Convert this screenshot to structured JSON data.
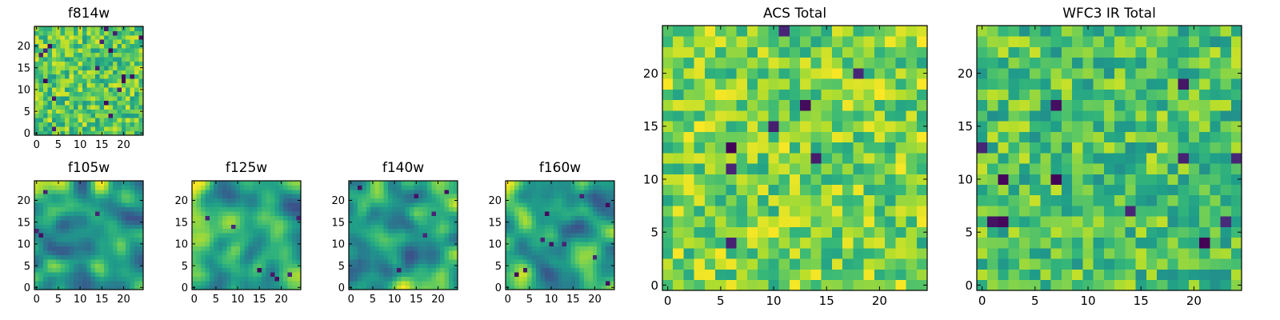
{
  "chart_data": [
    {
      "type": "heatmap",
      "title": "f814w",
      "grid": "25x25",
      "colormap": "viridis",
      "xlim": [
        -0.5,
        24.5
      ],
      "ylim": [
        -0.5,
        24.5
      ],
      "xticks": [
        0,
        5,
        10,
        15,
        20
      ],
      "yticks": [
        0,
        5,
        10,
        15,
        20
      ],
      "texture": "pixel noise",
      "seed": 11,
      "bias": 0.65,
      "dark_spots": 18
    },
    {
      "type": "heatmap",
      "title": "f105w",
      "grid": "25x25",
      "colormap": "viridis",
      "xlim": [
        -0.5,
        24.5
      ],
      "ylim": [
        -0.5,
        24.5
      ],
      "xticks": [
        0,
        5,
        10,
        15,
        20
      ],
      "yticks": [
        0,
        5,
        10,
        15,
        20
      ],
      "texture": "smooth",
      "seed": 23,
      "bias": 0.7,
      "dark_spots": 4
    },
    {
      "type": "heatmap",
      "title": "f125w",
      "grid": "25x25",
      "colormap": "viridis",
      "xlim": [
        -0.5,
        24.5
      ],
      "ylim": [
        -0.5,
        24.5
      ],
      "xticks": [
        0,
        5,
        10,
        15,
        20
      ],
      "yticks": [
        0,
        5,
        10,
        15,
        20
      ],
      "texture": "smooth",
      "seed": 37,
      "bias": 0.68,
      "dark_spots": 7
    },
    {
      "type": "heatmap",
      "title": "f140w",
      "grid": "25x25",
      "colormap": "viridis",
      "xlim": [
        -0.5,
        24.5
      ],
      "ylim": [
        -0.5,
        24.5
      ],
      "xticks": [
        0,
        5,
        10,
        15,
        20
      ],
      "yticks": [
        0,
        5,
        10,
        15,
        20
      ],
      "texture": "smooth",
      "seed": 41,
      "bias": 0.6,
      "dark_spots": 6
    },
    {
      "type": "heatmap",
      "title": "f160w",
      "grid": "25x25",
      "colormap": "viridis",
      "xlim": [
        -0.5,
        24.5
      ],
      "ylim": [
        -0.5,
        24.5
      ],
      "xticks": [
        0,
        5,
        10,
        15,
        20
      ],
      "yticks": [
        0,
        5,
        10,
        15,
        20
      ],
      "texture": "smooth",
      "seed": 59,
      "bias": 0.55,
      "dark_spots": 10
    },
    {
      "type": "heatmap",
      "title": "ACS Total",
      "grid": "25x25",
      "colormap": "viridis",
      "xlim": [
        -0.5,
        24.5
      ],
      "ylim": [
        -0.5,
        24.5
      ],
      "xticks": [
        0,
        5,
        10,
        15,
        20
      ],
      "yticks": [
        0,
        5,
        10,
        15,
        20
      ],
      "texture": "pixel noise",
      "seed": 71,
      "bias": 0.7,
      "dark_spots": 8
    },
    {
      "type": "heatmap",
      "title": "WFC3 IR Total",
      "grid": "25x25",
      "colormap": "viridis",
      "xlim": [
        -0.5,
        24.5
      ],
      "ylim": [
        -0.5,
        24.5
      ],
      "xticks": [
        0,
        5,
        10,
        15,
        20
      ],
      "yticks": [
        0,
        5,
        10,
        15,
        20
      ],
      "texture": "pixel noise",
      "seed": 83,
      "bias": 0.62,
      "dark_spots": 12
    }
  ]
}
